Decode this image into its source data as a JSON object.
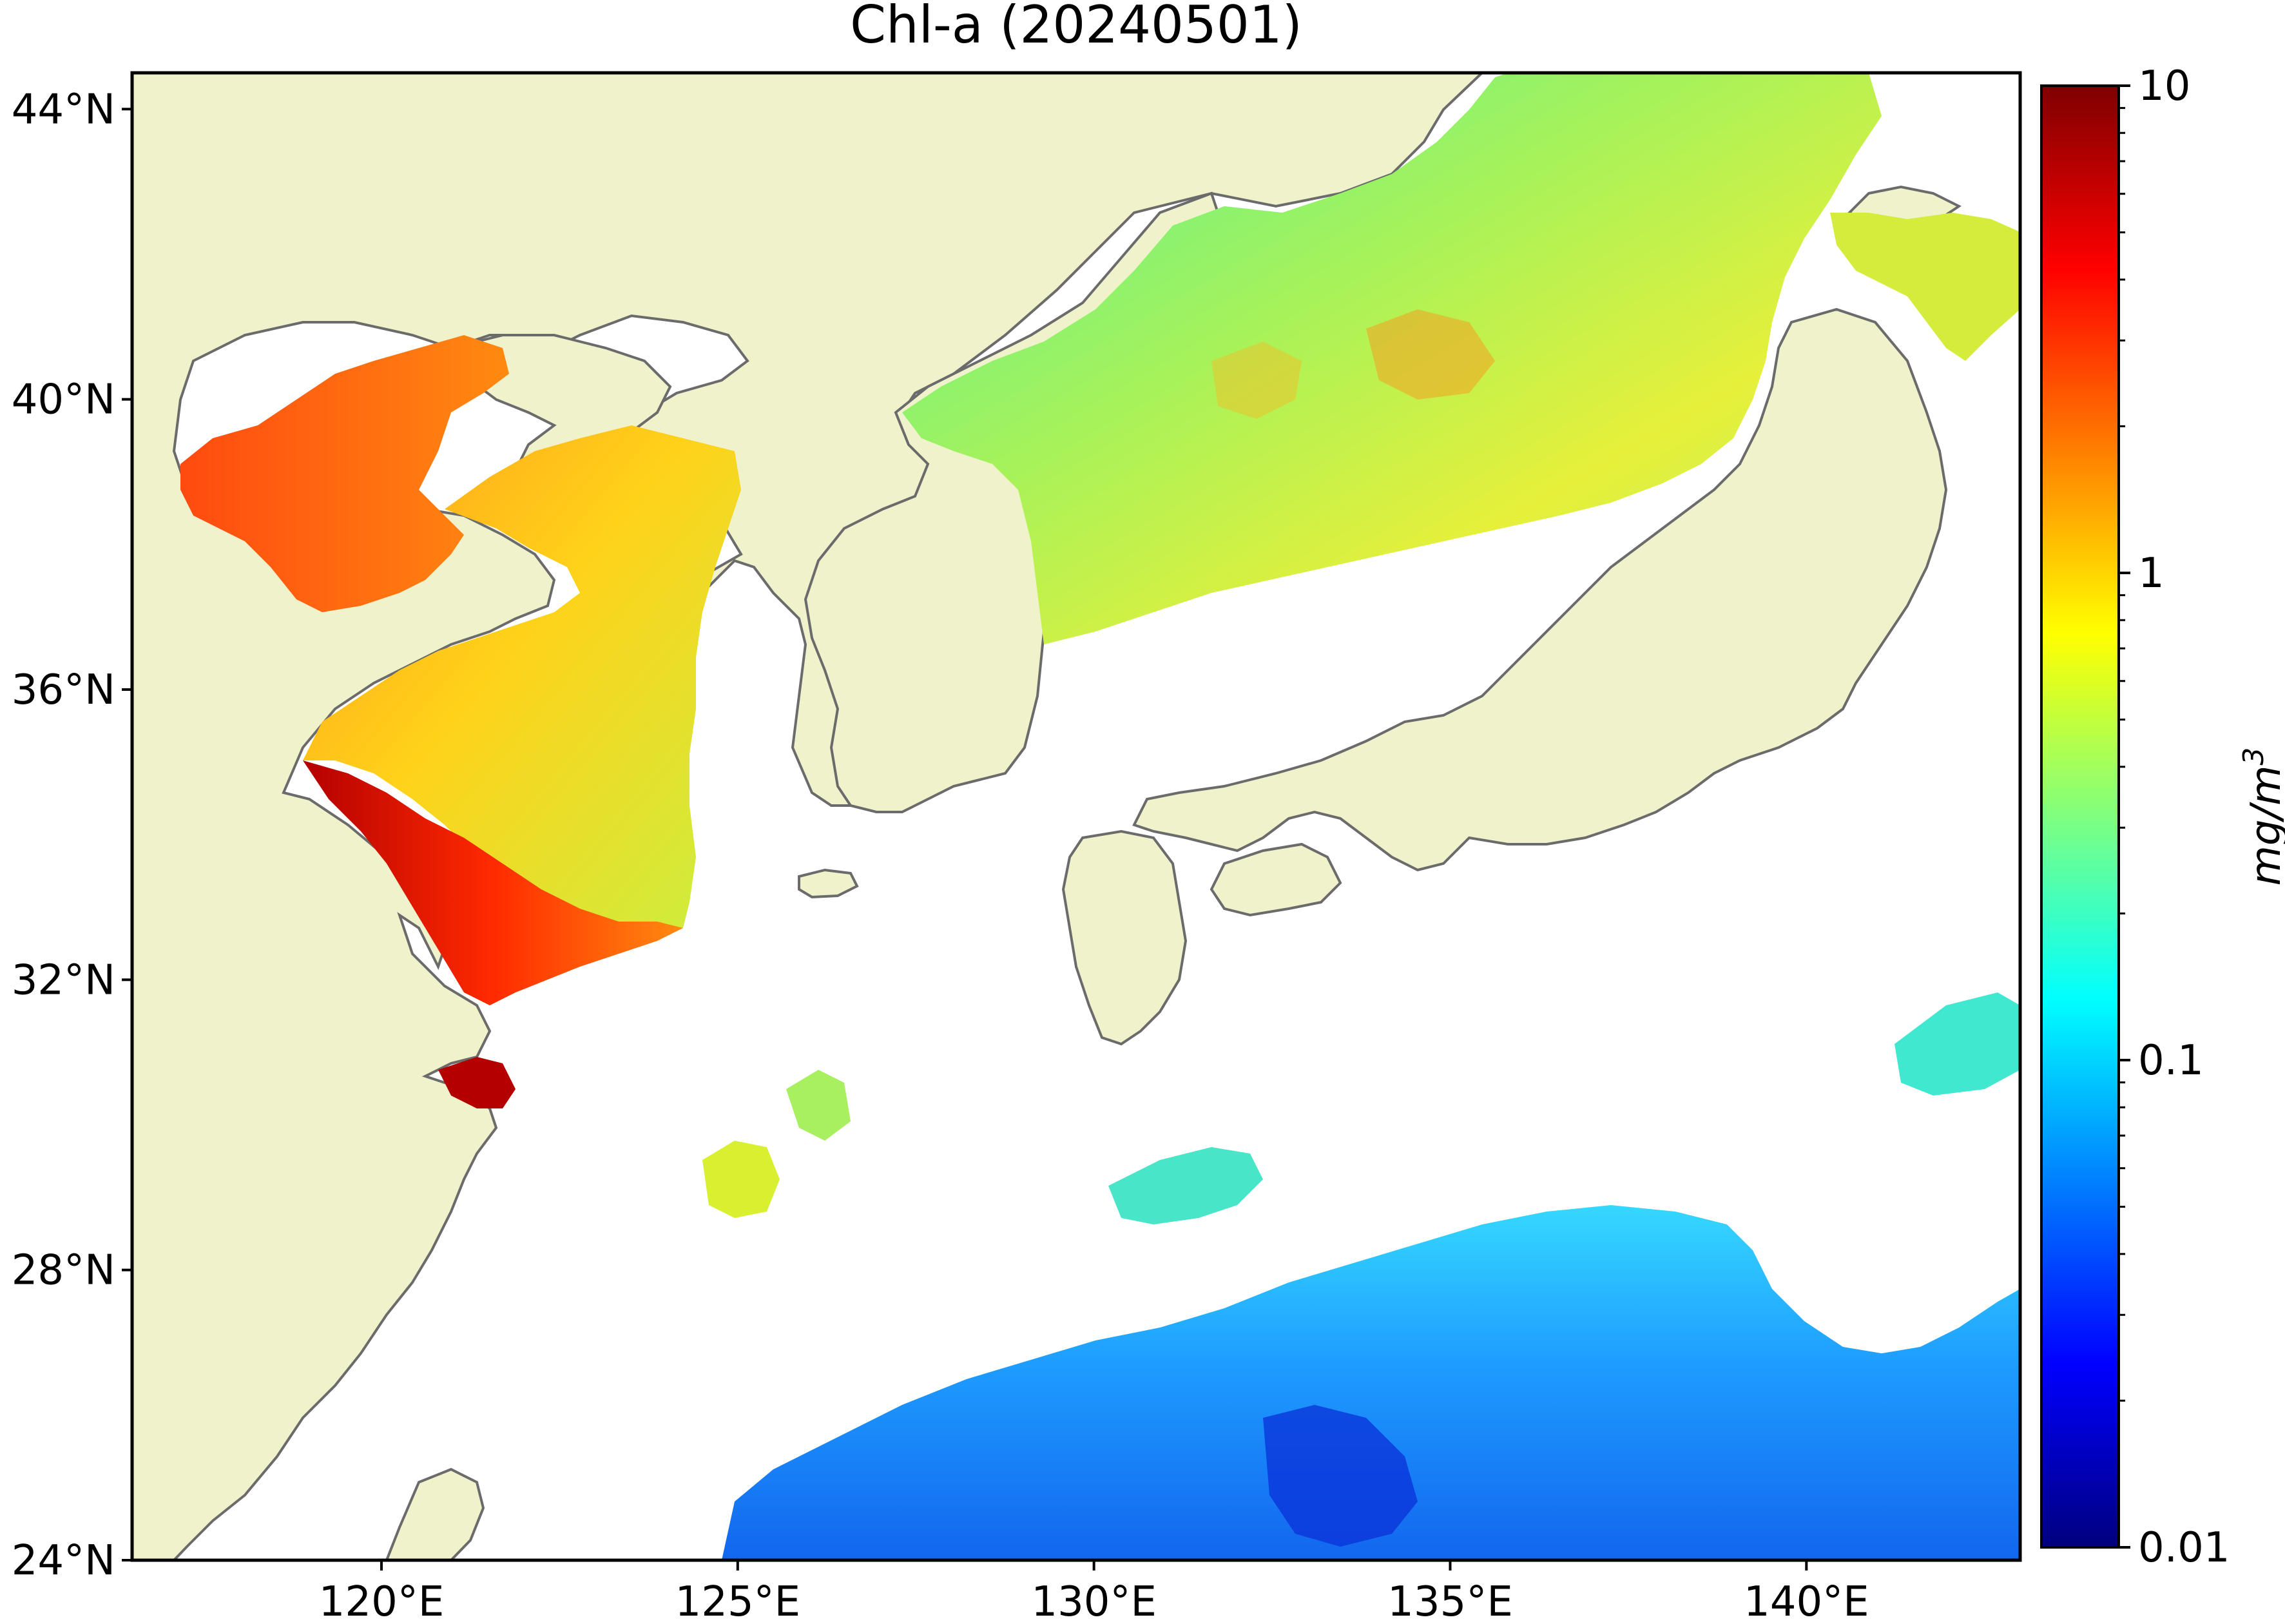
{
  "title": "Chl-a (20240501)",
  "colors": {
    "land": "#f0f2cc",
    "coastline": "#6b6b6b",
    "no_data": "#ffffff",
    "frame": "#000000"
  },
  "axes": {
    "x_ticks": [
      {
        "value": 120,
        "label": "120°E"
      },
      {
        "value": 125,
        "label": "125°E"
      },
      {
        "value": 130,
        "label": "130°E"
      },
      {
        "value": 135,
        "label": "135°E"
      },
      {
        "value": 140,
        "label": "140°E"
      }
    ],
    "y_ticks": [
      {
        "value": 24,
        "label": "24°N"
      },
      {
        "value": 28,
        "label": "28°N"
      },
      {
        "value": 32,
        "label": "32°N"
      },
      {
        "value": 36,
        "label": "36°N"
      },
      {
        "value": 40,
        "label": "40°N"
      },
      {
        "value": 44,
        "label": "44°N"
      }
    ],
    "lon_range": [
      116.5,
      143
    ],
    "lat_range": [
      24,
      44.5
    ]
  },
  "colorbar": {
    "label_base": "mg/m",
    "label_sup": "3",
    "scale": "log",
    "range": [
      0.01,
      10
    ],
    "ticks": [
      {
        "value": 10,
        "label": "10"
      },
      {
        "value": 1,
        "label": "1"
      },
      {
        "value": 0.1,
        "label": "0.1"
      },
      {
        "value": 0.01,
        "label": "0.01"
      }
    ],
    "minor_ticks": [
      0.02,
      0.03,
      0.04,
      0.05,
      0.06,
      0.07,
      0.08,
      0.09,
      0.2,
      0.3,
      0.4,
      0.5,
      0.6,
      0.7,
      0.8,
      0.9,
      2,
      3,
      4,
      5,
      6,
      7,
      8,
      9
    ],
    "colormap": "jet",
    "colormap_stops": [
      "#00007f",
      "#0000ff",
      "#007fff",
      "#00ffff",
      "#7fff7f",
      "#ffff00",
      "#ff7f00",
      "#ff0000",
      "#7f0000"
    ]
  }
}
